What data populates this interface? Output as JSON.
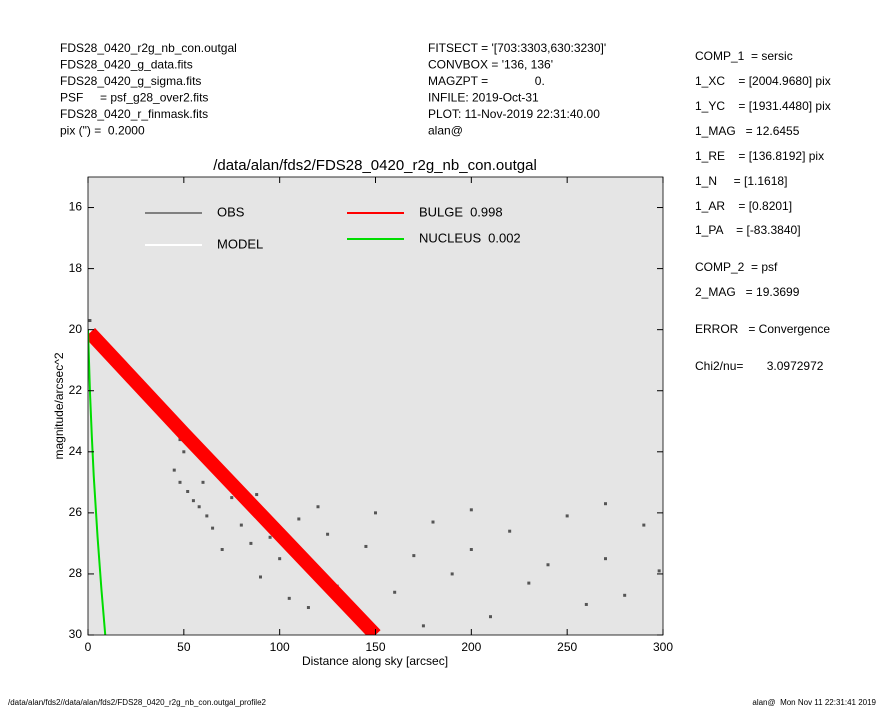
{
  "chart_data": {
    "type": "scatter",
    "title": "/data/alan/fds2/FDS28_0420_r2g_nb_con.outgal",
    "xlabel": "Distance along sky [arcsec]",
    "ylabel": "magnitude/arcsec^2",
    "xlim": [
      0,
      300
    ],
    "xticks": [
      0,
      50,
      100,
      150,
      200,
      250,
      300
    ],
    "ylim": [
      15,
      30
    ],
    "yticks": [
      16,
      18,
      20,
      22,
      24,
      26,
      28,
      30
    ],
    "y_inverted": true,
    "background": "#e5e5e5",
    "header_left": [
      "FDS28_0420_r2g_nb_con.outgal",
      "FDS28_0420_g_data.fits",
      "FDS28_0420_g_sigma.fits",
      "PSF     = psf_g28_over2.fits",
      "FDS28_0420_r_finmask.fits",
      "pix (\") =  0.2000"
    ],
    "header_middle": [
      "FITSECT = '[703:3303,630:3230]'",
      "CONVBOX = '136, 136'",
      "MAGZPT =              0.",
      "INFILE: 2019-Oct-31",
      "PLOT: 11-Nov-2019 22:31:40.00",
      "alan@"
    ],
    "fit_summary": [
      "COMP_1  = sersic",
      "1_XC    = [2004.9680] pix",
      "1_YC    = [1931.4480] pix",
      "1_MAG   = 12.6455",
      "1_RE    = [136.8192] pix",
      "1_N     = [1.1618]",
      "1_AR    = [0.8201]",
      "1_PA    = [-83.3840]",
      "COMP_2  = psf",
      "2_MAG   = 19.3699",
      "ERROR   = Convergence",
      "Chi2/nu=       3.0972972"
    ],
    "footer_left": "/data/alan/fds2//data/alan/fds2/FDS28_0420_r2g_nb_con.outgal_profile2",
    "footer_right": "alan@  Mon Nov 11 22:31:41 2019",
    "series": [
      {
        "name": "OBS",
        "color": "#555555",
        "legend_color": "#808080",
        "mode": "points",
        "x": [
          1,
          3,
          5,
          8,
          10,
          12,
          15,
          18,
          20,
          22,
          25,
          28,
          30,
          33,
          35,
          38,
          40,
          42,
          45,
          48,
          50,
          45,
          48,
          52,
          55,
          58,
          62,
          65,
          70,
          75,
          80,
          85,
          90,
          95,
          100,
          105,
          110,
          115,
          120,
          125,
          130,
          140,
          145,
          150,
          160,
          170,
          175,
          180,
          190,
          200,
          210,
          220,
          230,
          240,
          250,
          260,
          270,
          280,
          290,
          298,
          60,
          88,
          120,
          200,
          270
        ],
        "values": [
          19.7,
          20.1,
          20.3,
          20.6,
          20.8,
          21.0,
          21.2,
          21.3,
          21.6,
          21.7,
          21.9,
          22.1,
          22.2,
          22.4,
          22.3,
          22.6,
          22.8,
          23.0,
          23.3,
          23.6,
          24.0,
          24.6,
          25.0,
          25.3,
          25.6,
          25.8,
          26.1,
          26.5,
          27.2,
          25.5,
          26.4,
          27.0,
          28.1,
          26.8,
          27.5,
          28.8,
          26.2,
          29.1,
          27.9,
          26.7,
          28.4,
          29.3,
          27.1,
          26.0,
          28.6,
          27.4,
          29.7,
          26.3,
          28.0,
          27.2,
          29.4,
          26.6,
          28.3,
          27.7,
          26.1,
          29.0,
          27.5,
          28.7,
          26.4,
          27.9,
          25.0,
          25.4,
          25.8,
          25.9,
          25.7
        ]
      },
      {
        "name": "MODEL",
        "color": "#ffffff",
        "mode": "line",
        "x": [
          0,
          50,
          100,
          150
        ],
        "values": [
          20.0,
          23.2,
          26.5,
          29.8
        ]
      },
      {
        "name": "BULGE",
        "fraction": 0.998,
        "color": "#ff0000",
        "mode": "band",
        "x": [
          1,
          50,
          100,
          150
        ],
        "values": [
          20.1,
          23.4,
          26.7,
          30.0
        ]
      },
      {
        "name": "NUCLEUS",
        "fraction": 0.002,
        "color": "#00dd00",
        "mode": "line",
        "x": [
          0,
          0.5,
          1,
          2,
          3,
          5,
          7,
          9
        ],
        "values": [
          20,
          21,
          22,
          23.5,
          24.8,
          26.8,
          28.5,
          30
        ]
      }
    ]
  }
}
